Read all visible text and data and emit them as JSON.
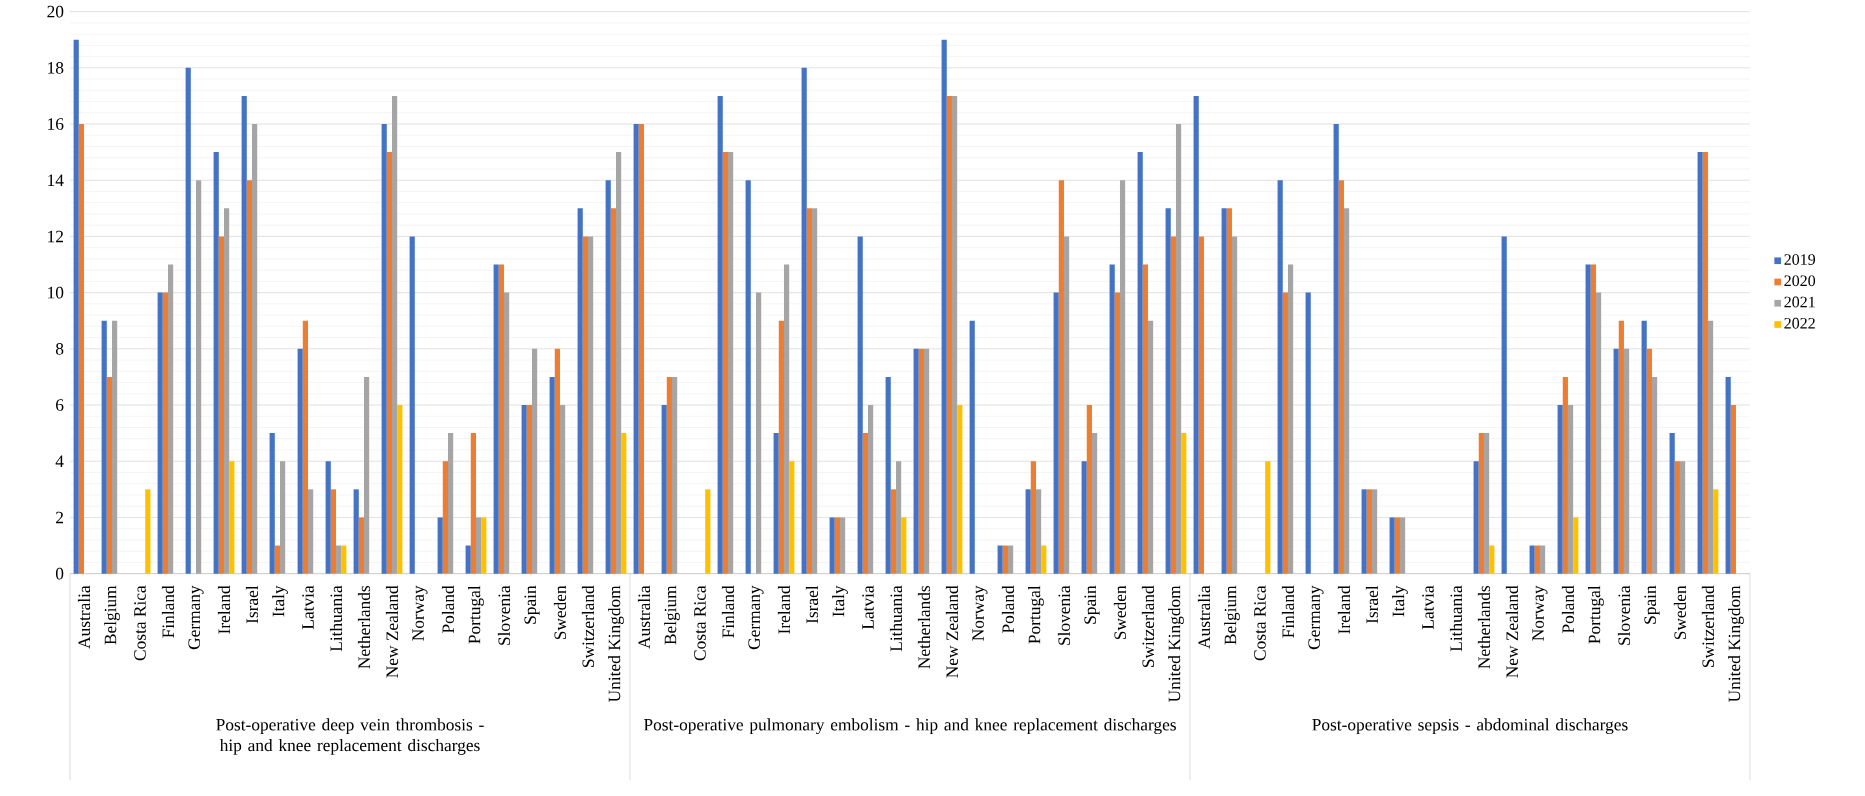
{
  "chart_data": {
    "type": "bar",
    "categories": [
      "Australia",
      "Belgium",
      "Costa Rica",
      "Finland",
      "Germany",
      "Ireland",
      "Israel",
      "Italy",
      "Latvia",
      "Lithuania",
      "Netherlands",
      "New Zealand",
      "Norway",
      "Poland",
      "Portugal",
      "Slovenia",
      "Spain",
      "Sweden",
      "Switzerland",
      "United Kingdom",
      "Australia",
      "Belgium",
      "Costa Rica",
      "Finland",
      "Germany",
      "Ireland",
      "Israel",
      "Italy",
      "Latvia",
      "Lithuania",
      "Netherlands",
      "New Zealand",
      "Norway",
      "Poland",
      "Portugal",
      "Slovenia",
      "Spain",
      "Sweden",
      "Switzerland",
      "United Kingdom",
      "Australia",
      "Belgium",
      "Costa Rica",
      "Finland",
      "Germany",
      "Ireland",
      "Israel",
      "Italy",
      "Latvia",
      "Lithuania",
      "Netherlands",
      "New Zealand",
      "Norway",
      "Poland",
      "Portugal",
      "Slovenia",
      "Spain",
      "Sweden",
      "Switzerland",
      "United Kingdom"
    ],
    "series": [
      {
        "name": "2019",
        "color": "#4472c4",
        "values": [
          19,
          9,
          null,
          10,
          18,
          15,
          17,
          5,
          8,
          4,
          3,
          16,
          12,
          2,
          1,
          11,
          6,
          7,
          13,
          14,
          16,
          6,
          null,
          17,
          14,
          5,
          18,
          2,
          12,
          7,
          8,
          19,
          9,
          1,
          3,
          10,
          4,
          11,
          15,
          13,
          17,
          13,
          null,
          14,
          10,
          16,
          3,
          2,
          null,
          null,
          4,
          12,
          1,
          6,
          11,
          8,
          9,
          5,
          15,
          7
        ]
      },
      {
        "name": "2020",
        "color": "#ed7d31",
        "values": [
          16,
          7,
          null,
          10,
          null,
          12,
          14,
          1,
          9,
          3,
          2,
          15,
          null,
          4,
          5,
          11,
          6,
          8,
          12,
          13,
          16,
          7,
          null,
          15,
          null,
          9,
          13,
          2,
          5,
          3,
          8,
          17,
          null,
          1,
          4,
          14,
          6,
          10,
          11,
          12,
          12,
          13,
          null,
          10,
          null,
          14,
          3,
          2,
          null,
          null,
          5,
          null,
          1,
          7,
          11,
          9,
          8,
          4,
          15,
          6
        ]
      },
      {
        "name": "2021",
        "color": "#a5a5a5",
        "values": [
          null,
          9,
          null,
          11,
          14,
          13,
          16,
          4,
          3,
          1,
          7,
          17,
          null,
          5,
          2,
          10,
          8,
          6,
          12,
          15,
          null,
          7,
          null,
          15,
          10,
          11,
          13,
          2,
          6,
          4,
          8,
          17,
          null,
          1,
          3,
          12,
          5,
          14,
          9,
          16,
          null,
          12,
          null,
          11,
          null,
          13,
          3,
          2,
          null,
          null,
          5,
          null,
          1,
          6,
          10,
          8,
          7,
          4,
          9,
          null
        ]
      },
      {
        "name": "2022",
        "color": "#ffc000",
        "values": [
          null,
          null,
          3,
          null,
          null,
          4,
          null,
          null,
          null,
          1,
          null,
          6,
          null,
          null,
          2,
          null,
          null,
          null,
          null,
          5,
          null,
          null,
          3,
          null,
          null,
          4,
          null,
          null,
          null,
          2,
          null,
          6,
          null,
          null,
          1,
          null,
          null,
          null,
          null,
          5,
          null,
          null,
          4,
          null,
          null,
          null,
          null,
          null,
          null,
          null,
          1,
          null,
          null,
          2,
          null,
          null,
          null,
          null,
          3,
          null
        ]
      }
    ],
    "ylim": [
      0,
      20
    ],
    "yticks": [
      0,
      2,
      4,
      6,
      8,
      10,
      12,
      14,
      16,
      18,
      20
    ],
    "grid": "y",
    "legend": "right",
    "annotations": [
      "Post-operative deep vein thrombosis - hip and knee replacement discharges",
      "Post-operative pulmonary embolism - hip and knee replacement discharges",
      "Post-operative sepsis - abdominal discharges"
    ]
  }
}
